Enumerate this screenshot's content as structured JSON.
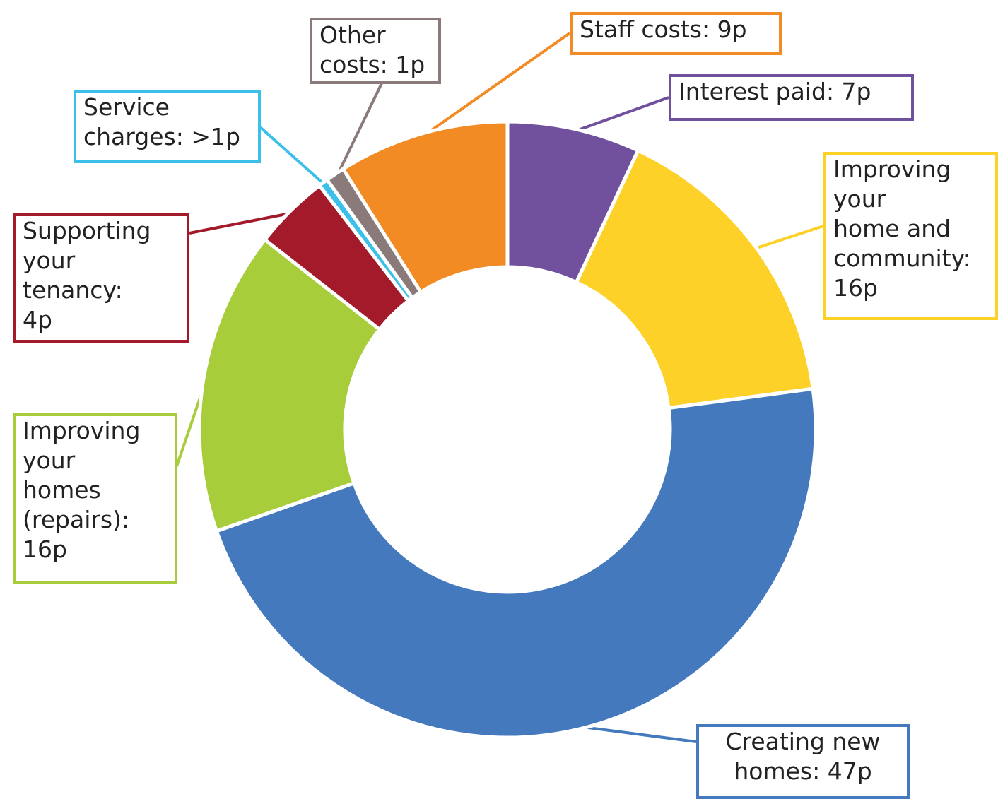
{
  "chart_data": {
    "type": "donut",
    "categories": [
      "Interest paid: 7p",
      "Improving\nyour\nhome and\ncommunity:\n16p",
      "Creating new\nhomes: 47p",
      "Improving\nyour\nhomes\n(repairs):\n16p",
      "Supporting\nyour\ntenancy:\n4p",
      "Service\ncharges: >1p",
      "Other\ncosts: 1p",
      "Staff costs: 9p"
    ],
    "values": [
      7,
      16,
      47,
      16,
      4,
      0.5,
      1,
      9
    ],
    "colors": [
      "#71509e",
      "#fdd128",
      "#4479be",
      "#a8cd3b",
      "#a31b2b",
      "#3cc0ea",
      "#8a7b7a",
      "#f28b24"
    ]
  }
}
